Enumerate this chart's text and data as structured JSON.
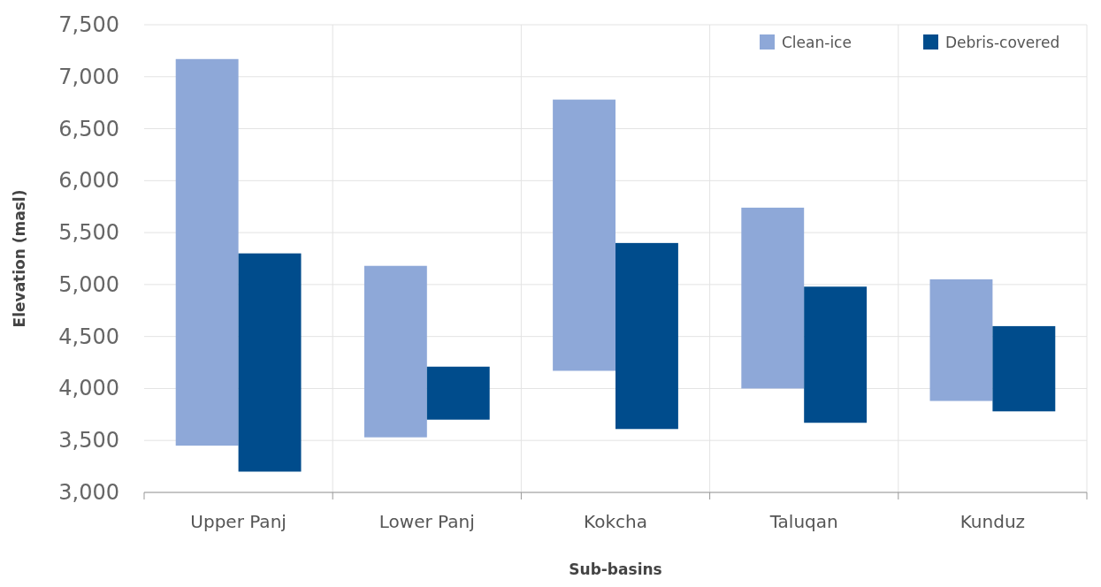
{
  "chart_data": {
    "type": "bar",
    "xlabel": "Sub-basins",
    "ylabel": "Elevation (masl)",
    "categories": [
      "Upper Panj",
      "Lower Panj",
      "Kokcha",
      "Taluqan",
      "Kunduz"
    ],
    "series": [
      {
        "name": "Clean-ice",
        "color": "#8ea8d8",
        "base": [
          3450,
          3530,
          4170,
          4000,
          3880
        ],
        "values": [
          3720,
          1650,
          2610,
          1740,
          1170
        ]
      },
      {
        "name": "Debris-covered",
        "color": "#004c8c",
        "base": [
          3200,
          3700,
          3610,
          3670,
          3780
        ],
        "values": [
          2100,
          510,
          1790,
          1310,
          820
        ]
      }
    ],
    "ylim": [
      3000,
      7500
    ],
    "yticks": [
      {
        "value": 3000,
        "label": "3,000"
      },
      {
        "value": 3500,
        "label": "3,500"
      },
      {
        "value": 4000,
        "label": "4,000"
      },
      {
        "value": 4500,
        "label": "4,500"
      },
      {
        "value": 5000,
        "label": "5,000"
      },
      {
        "value": 5500,
        "label": "5,500"
      },
      {
        "value": 6000,
        "label": "6,000"
      },
      {
        "value": 6500,
        "label": "6,500"
      },
      {
        "value": 7000,
        "label": "7,000"
      },
      {
        "value": 7500,
        "label": "7,500"
      }
    ],
    "grid": true,
    "legend": "top right"
  }
}
